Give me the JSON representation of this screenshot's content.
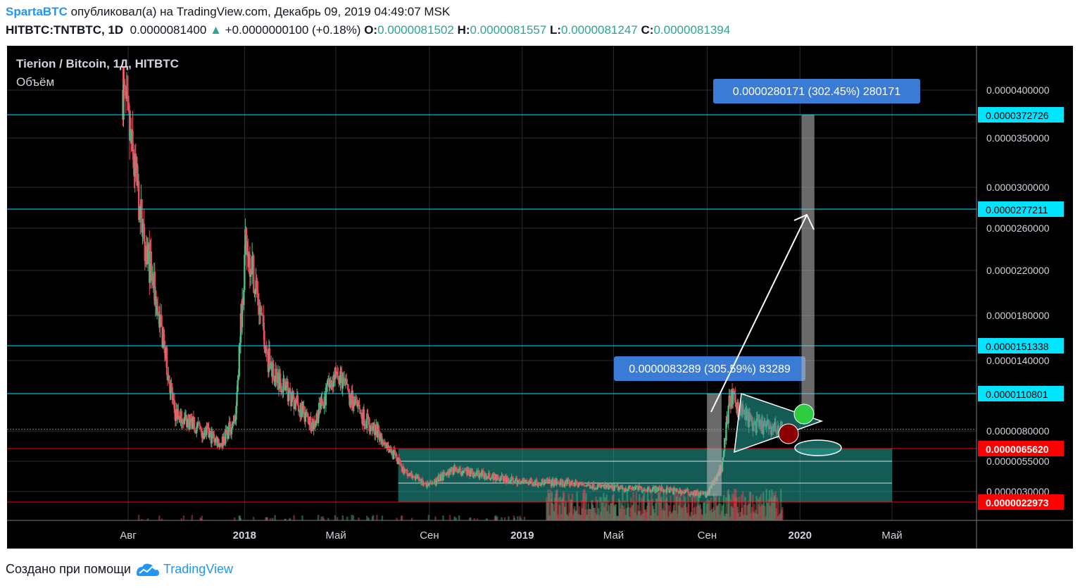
{
  "header": {
    "author": "SpartaBTC",
    "published_text": "опубликовал(а) на TradingView.com, Декабрь 09, 2019 04:49:07 MSK",
    "symbol": "HITBTC:TNTBTC, 1D",
    "price": "0.0000081400",
    "change": "+0.0000000100 (+0.18%)",
    "open_label": "O:",
    "open": "0.0000081502",
    "high_label": "H:",
    "high": "0.0000081557",
    "low_label": "L:",
    "low": "0.0000081247",
    "close_label": "C:",
    "close": "0.0000081394"
  },
  "chart_title": "Tierion / Bitcoin, 1Д, HITBTC",
  "volume_label": "Объём",
  "footer": {
    "created_with": "Создано при помощи",
    "brand": "TradingView"
  },
  "colors": {
    "background": "#000000",
    "up_candle": "#53b987",
    "down_candle": "#eb4d5c",
    "level_line": "#00e5ff",
    "red_line": "#ff0000",
    "zone_fill": "#26a69a",
    "measure_box": "#3a7bd5",
    "axis_label_bg": "#00e5ff",
    "axis_label_red": "#ff0000"
  },
  "chart_data": {
    "type": "candlestick",
    "title": "Tierion / Bitcoin, 1Д, HITBTC",
    "y_axis": {
      "tick_labels": [
        "0.0000400000",
        "0.0000350000",
        "0.0000300000",
        "0.0000260000",
        "0.0000220000",
        "0.0000180000",
        "0.0000140000",
        "0.0000080000",
        "0.0000055000",
        "0.0000030000"
      ],
      "tick_values": [
        40.0,
        35.0,
        30.0,
        26.0,
        22.0,
        18.0,
        14.0,
        8.0,
        5.5,
        3.0
      ],
      "value_scale": "1e-7 BTC",
      "scale": "non-linear (price-level compressed)"
    },
    "x_axis": {
      "tick_labels": [
        "Авг",
        "2018",
        "Май",
        "Сен",
        "2019",
        "Май",
        "Сен",
        "2020",
        "Май"
      ],
      "tick_dates": [
        "2017-08-01",
        "2018-01-01",
        "2018-05-01",
        "2018-09-01",
        "2019-01-01",
        "2019-05-01",
        "2019-09-01",
        "2020-01-01",
        "2020-05-01"
      ]
    },
    "price_lines": [
      {
        "label": "0.0000372726",
        "value": 37.2726,
        "color": "#00e5ff",
        "highlight": true
      },
      {
        "label": "0.0000277211",
        "value": 27.7211,
        "color": "#00e5ff",
        "highlight": true
      },
      {
        "label": "0.0000151338",
        "value": 15.1338,
        "color": "#00e5ff",
        "highlight": true
      },
      {
        "label": "0.0000110801",
        "value": 11.0801,
        "color": "#00e5ff",
        "highlight": true
      },
      {
        "label": "0.0000065620",
        "value": 6.562,
        "color": "#ff0000",
        "highlight": true
      },
      {
        "label": "0.0000022973",
        "value": 2.2973,
        "color": "#ff0000",
        "highlight": true
      }
    ],
    "current_price_line": 8.14,
    "measurements": [
      {
        "text": "0.0000083289 (305.59%) 83289",
        "date_from": "2019-09-01",
        "date_to": "2019-09-20",
        "low": 2.7,
        "high": 11.08
      },
      {
        "text": "0.0000280171 (302.45%) 280171",
        "date_from": "2020-01-03",
        "date_to": "2020-01-20",
        "low": 9.26,
        "high": 37.27
      }
    ],
    "zone": {
      "date_from": "2018-07-22",
      "date_to": "2020-05-01",
      "high": 6.562,
      "low": 2.2973
    },
    "pattern": "symmetrical triangle (Oct–Dec 2019)",
    "series_anchor_closes": [
      {
        "date": "2017-07-25",
        "close": 40.0
      },
      {
        "date": "2017-08-20",
        "close": 26.0
      },
      {
        "date": "2017-09-10",
        "close": 18.0
      },
      {
        "date": "2017-10-01",
        "close": 9.5
      },
      {
        "date": "2017-11-01",
        "close": 8.3
      },
      {
        "date": "2017-12-01",
        "close": 7.0
      },
      {
        "date": "2017-12-20",
        "close": 9.0
      },
      {
        "date": "2018-01-02",
        "close": 24.0
      },
      {
        "date": "2018-01-10",
        "close": 23.0
      },
      {
        "date": "2018-02-01",
        "close": 14.0
      },
      {
        "date": "2018-03-01",
        "close": 11.0
      },
      {
        "date": "2018-04-01",
        "close": 8.5
      },
      {
        "date": "2018-05-01",
        "close": 13.0
      },
      {
        "date": "2018-06-01",
        "close": 9.5
      },
      {
        "date": "2018-07-01",
        "close": 7.5
      },
      {
        "date": "2018-08-01",
        "close": 4.5
      },
      {
        "date": "2018-09-01",
        "close": 3.5
      },
      {
        "date": "2018-10-01",
        "close": 4.8
      },
      {
        "date": "2018-11-01",
        "close": 4.5
      },
      {
        "date": "2019-01-01",
        "close": 3.8
      },
      {
        "date": "2019-03-01",
        "close": 3.7
      },
      {
        "date": "2019-05-01",
        "close": 3.3
      },
      {
        "date": "2019-07-01",
        "close": 3.2
      },
      {
        "date": "2019-09-01",
        "close": 2.8
      },
      {
        "date": "2019-09-20",
        "close": 5.0
      },
      {
        "date": "2019-10-01",
        "close": 10.8
      },
      {
        "date": "2019-11-01",
        "close": 8.5
      },
      {
        "date": "2019-12-09",
        "close": 8.14
      }
    ]
  }
}
